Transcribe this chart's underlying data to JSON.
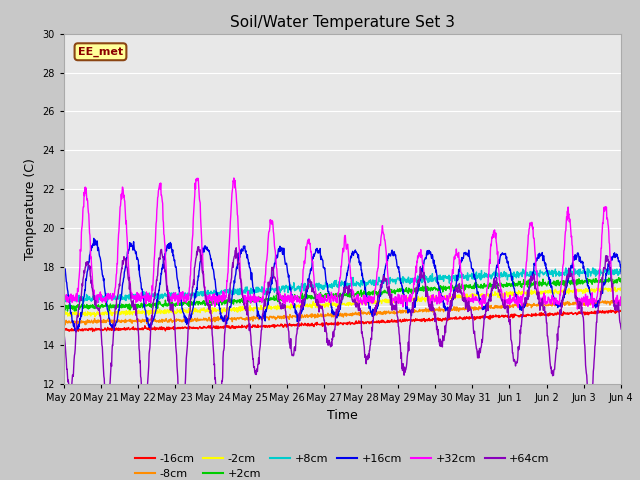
{
  "title": "Soil/Water Temperature Set 3",
  "xlabel": "Time",
  "ylabel": "Temperature (C)",
  "ylim": [
    12,
    30
  ],
  "yticks": [
    12,
    14,
    16,
    18,
    20,
    22,
    24,
    26,
    28,
    30
  ],
  "fig_facecolor": "#c8c8c8",
  "plot_bg_color": "#e8e8e8",
  "annotation_text": "EE_met",
  "annotation_box_color": "#ffff99",
  "annotation_border_color": "#8b4513",
  "line_colors": {
    "-16cm": "#ff0000",
    "-8cm": "#ff8c00",
    "-2cm": "#ffff00",
    "+2cm": "#00cc00",
    "+8cm": "#00cccc",
    "+16cm": "#0000ee",
    "+32cm": "#ff00ff",
    "+64cm": "#8800bb"
  },
  "x_labels": [
    "May 20",
    "May 21",
    "May 22",
    "May 23",
    "May 24",
    "May 25",
    "May 26",
    "May 27",
    "May 28",
    "May 29",
    "May 30",
    "May 31",
    "Jun 1",
    "Jun 2",
    "Jun 3",
    "Jun 4"
  ]
}
